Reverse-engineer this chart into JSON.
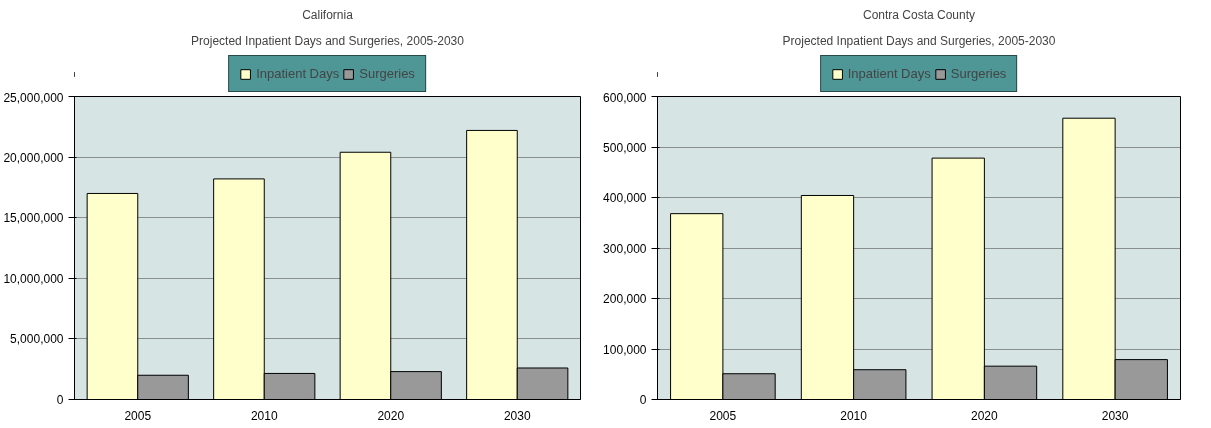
{
  "chart_data": [
    {
      "type": "bar",
      "title": "California",
      "subtitle": "Projected Inpatient Days and Surgeries, 2005-2030",
      "categories": [
        "2005",
        "2010",
        "2020",
        "2030"
      ],
      "series": [
        {
          "name": "Inpatient Days",
          "color": "#ffffcc",
          "values": [
            17000000,
            18200000,
            20400000,
            22200000
          ]
        },
        {
          "name": "Surgeries",
          "color": "#999999",
          "values": [
            2000000,
            2150000,
            2300000,
            2600000
          ]
        }
      ],
      "ylim": [
        0,
        25000000
      ],
      "yticks": [
        {
          "value": 0,
          "label": "0"
        },
        {
          "value": 5000000,
          "label": "5,000,000"
        },
        {
          "value": 10000000,
          "label": "10,000,000"
        },
        {
          "value": 15000000,
          "label": "15,000,000"
        },
        {
          "value": 20000000,
          "label": "20,000,000"
        },
        {
          "value": 25000000,
          "label": "25,000,000"
        }
      ],
      "grid": "y",
      "legend": "top"
    },
    {
      "type": "bar",
      "title": "Contra Costa County",
      "subtitle": "Projected Inpatient Days and Surgeries, 2005-2030",
      "categories": [
        "2005",
        "2010",
        "2020",
        "2030"
      ],
      "series": [
        {
          "name": "Inpatient Days",
          "color": "#ffffcc",
          "values": [
            368000,
            404000,
            478000,
            557000
          ]
        },
        {
          "name": "Surgeries",
          "color": "#999999",
          "values": [
            51000,
            59000,
            66000,
            79000
          ]
        }
      ],
      "ylim": [
        0,
        600000
      ],
      "yticks": [
        {
          "value": 0,
          "label": "0"
        },
        {
          "value": 100000,
          "label": "100,000"
        },
        {
          "value": 200000,
          "label": "200,000"
        },
        {
          "value": 300000,
          "label": "300,000"
        },
        {
          "value": 400000,
          "label": "400,000"
        },
        {
          "value": 500000,
          "label": "500,000"
        },
        {
          "value": 600000,
          "label": "600,000"
        }
      ],
      "grid": "y",
      "legend": "top"
    }
  ]
}
